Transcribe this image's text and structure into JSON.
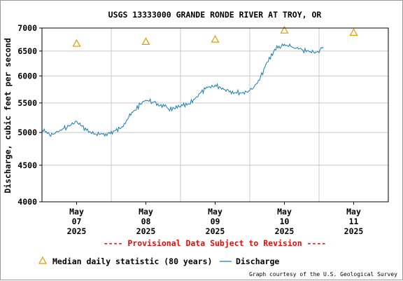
{
  "chart_data": {
    "type": "line",
    "title": "USGS 13333000 GRANDE RONDE RIVER AT TROY, OR",
    "ylabel": "Discharge, cubic feet per second",
    "xlabel": "",
    "yscale": "log",
    "ylim": [
      4000,
      7000
    ],
    "xlim": [
      "2025-05-07 00:00",
      "2025-05-12 00:00"
    ],
    "yticks": [
      {
        "value": 4000,
        "label": "4000"
      },
      {
        "value": 4500,
        "label": "4500"
      },
      {
        "value": 5000,
        "label": "5000"
      },
      {
        "value": 5500,
        "label": "5500"
      },
      {
        "value": 6000,
        "label": "6000"
      },
      {
        "value": 6500,
        "label": "6500"
      },
      {
        "value": 7000,
        "label": "7000"
      }
    ],
    "xticks": [
      {
        "value": "2025-05-07 12:00",
        "month": "May",
        "day": "07",
        "year": "2025"
      },
      {
        "value": "2025-05-08 12:00",
        "month": "May",
        "day": "08",
        "year": "2025"
      },
      {
        "value": "2025-05-09 12:00",
        "month": "May",
        "day": "09",
        "year": "2025"
      },
      {
        "value": "2025-05-10 12:00",
        "month": "May",
        "day": "10",
        "year": "2025"
      },
      {
        "value": "2025-05-11 12:00",
        "month": "May",
        "day": "11",
        "year": "2025"
      }
    ],
    "grid": true,
    "series": [
      {
        "name": "Discharge",
        "color": "#1a7db0",
        "x": [
          "2025-05-07 00:00",
          "2025-05-07 03:00",
          "2025-05-07 06:00",
          "2025-05-07 09:00",
          "2025-05-07 12:00",
          "2025-05-07 15:00",
          "2025-05-07 18:00",
          "2025-05-07 21:00",
          "2025-05-08 00:00",
          "2025-05-08 03:00",
          "2025-05-08 06:00",
          "2025-05-08 09:00",
          "2025-05-08 12:00",
          "2025-05-08 15:00",
          "2025-05-08 18:00",
          "2025-05-08 21:00",
          "2025-05-09 00:00",
          "2025-05-09 03:00",
          "2025-05-09 06:00",
          "2025-05-09 09:00",
          "2025-05-09 12:00",
          "2025-05-09 15:00",
          "2025-05-09 18:00",
          "2025-05-09 21:00",
          "2025-05-10 00:00",
          "2025-05-10 03:00",
          "2025-05-10 06:00",
          "2025-05-10 09:00",
          "2025-05-10 12:00",
          "2025-05-10 15:00",
          "2025-05-10 18:00",
          "2025-05-10 21:00",
          "2025-05-11 00:00",
          "2025-05-11 01:30"
        ],
        "y": [
          5040,
          4960,
          5020,
          5100,
          5180,
          5050,
          4980,
          4960,
          5000,
          5060,
          5250,
          5420,
          5560,
          5500,
          5440,
          5380,
          5440,
          5470,
          5640,
          5760,
          5820,
          5760,
          5700,
          5680,
          5720,
          5880,
          6260,
          6560,
          6620,
          6580,
          6520,
          6480,
          6500,
          6580
        ]
      },
      {
        "name": "Median daily statistic (80 years)",
        "color": "#e29b00",
        "marker": "triangle",
        "x": [
          "2025-05-07 12:00",
          "2025-05-08 12:00",
          "2025-05-09 12:00",
          "2025-05-10 12:00",
          "2025-05-11 12:00"
        ],
        "y": [
          6660,
          6700,
          6750,
          6950,
          6900
        ]
      }
    ],
    "legend": {
      "placement": "bottom",
      "entries": [
        {
          "label": "Median daily statistic (80 years)",
          "kind": "triangle",
          "color": "#e29b00"
        },
        {
          "label": "Discharge",
          "kind": "line",
          "color": "#1a7db0"
        }
      ]
    },
    "notes": {
      "provisional": "---- Provisional Data Subject to Revision ----",
      "provisional_color": "#ff0000",
      "credit": "Graph courtesy of the U.S. Geological Survey"
    }
  }
}
